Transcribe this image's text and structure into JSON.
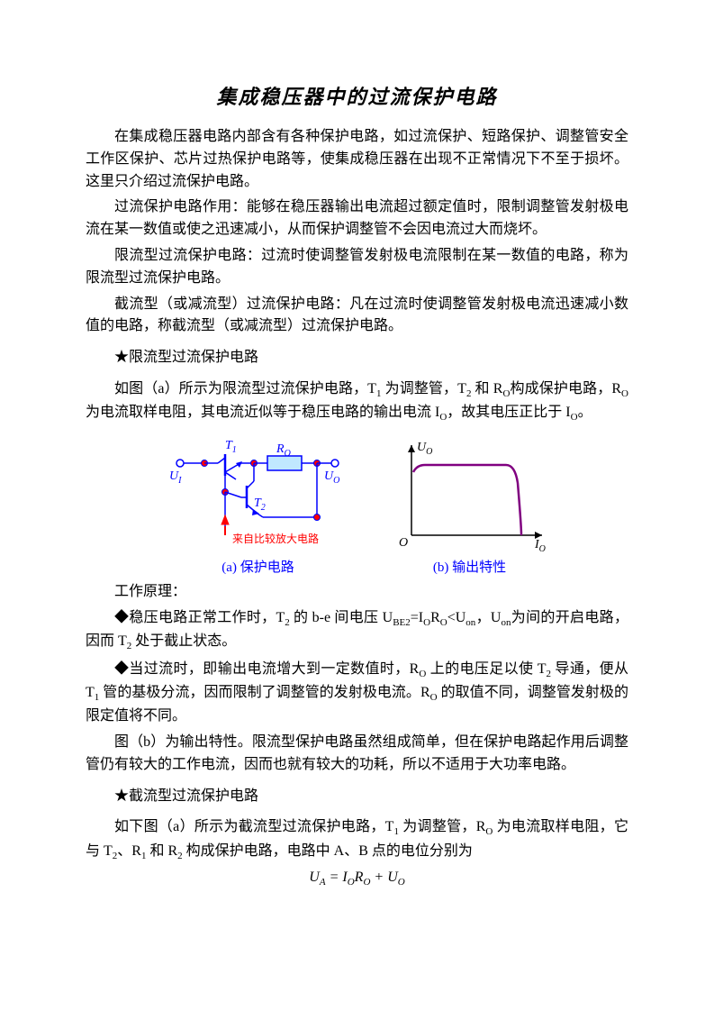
{
  "title": "集成稳压器中的过流保护电路",
  "para1": "在集成稳压器电路内部含有各种保护电路，如过流保护、短路保护、调整管安全工作区保护、芯片过热保护电路等，使集成稳压器在出现不正常情况下不至于损坏。这里只介绍过流保护电路。",
  "para2": "过流保护电路作用：能够在稳压器输出电流超过额定值时，限制调整管发射极电流在某一数值或使之迅速减小，从而保护调整管不会因电流过大而烧坏。",
  "para3": "限流型过流保护电路：过流时使调整管发射极电流限制在某一数值的电路，称为限流型过流保护电路。",
  "para4": "截流型（或减流型）过流保护电路：凡在过流时使调整管发射极电流迅速减小数值的电路，称截流型（或减流型）过流保护电路。",
  "heading1": "★限流型过流保护电路",
  "para5_html": "如图（a）所示为限流型过流保护电路，T<sub>1</sub> 为调整管，T<sub>2</sub> 和 R<sub>O</sub>构成保护电路，R<sub>O</sub> 为电流取样电阻，其电流近似等于稳压电路的输出电流 I<sub>O</sub>，故其电压正比于 I<sub>O</sub>。",
  "figure": {
    "circuit": {
      "colors": {
        "line": "#0000ff",
        "node_fill": "#ff0000",
        "arrow": "#ff0000",
        "label": "#0000ff",
        "resistor_label": "#0000ff",
        "note_text": "#ff0000"
      },
      "labels": {
        "Ui": "U",
        "Ui_sub": "I",
        "Uo": "U",
        "Uo_sub": "O",
        "T1": "T",
        "T1_sub": "1",
        "T2": "T",
        "T2_sub": "2",
        "Ro": "R",
        "Ro_sub": "O",
        "note": "来自比较放大电路"
      },
      "caption": "(a) 保护电路"
    },
    "output": {
      "colors": {
        "axis": "#000000",
        "curve": "#800080"
      },
      "labels": {
        "y": "U",
        "y_sub": "O",
        "x": "I",
        "x_sub": "O",
        "origin": "O"
      },
      "caption": "(b) 输出特性"
    }
  },
  "para6": "工作原理：",
  "para7_html": "◆稳压电路正常工作时，T<sub>2</sub> 的 b-e 间电压 U<sub>BE2</sub>=I<sub>O</sub>R<sub>O</sub>&lt;U<sub>on</sub>，U<sub>on</sub>为间的开启电路，因而 T<sub>2</sub> 处于截止状态。",
  "para8_html": "◆当过流时，即输出电流增大到一定数值时，R<sub>O</sub> 上的电压足以使 T<sub>2</sub> 导通，便从 T<sub>1</sub> 管的基极分流，因而限制了调整管的发射极电流。R<sub>O</sub> 的取值不同，调整管发射极的限定值将不同。",
  "para9": "图（b）为输出特性。限流型保护电路虽然组成简单，但在保护电路起作用后调整管仍有较大的工作电流，因而也就有较大的功耗，所以不适用于大功率电路。",
  "heading2": "★截流型过流保护电路",
  "para10_html": "如下图（a）所示为截流型过流保护电路，T<sub>1</sub> 为调整管，R<sub>O</sub> 为电流取样电阻，它与 T<sub>2</sub>、R<sub>1</sub> 和 R<sub>2</sub> 构成保护电路，电路中 A、B 点的电位分别为",
  "formula1_html": "U<sub>A</sub> = I<sub>O</sub>R<sub>O</sub> + U<sub>O</sub>"
}
